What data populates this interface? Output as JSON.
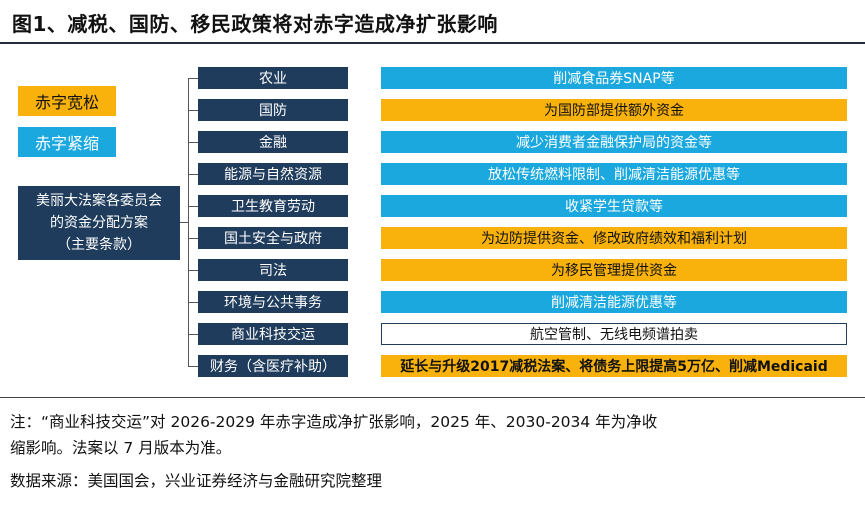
{
  "title": "图1、减税、国防、移民政策将对赤字造成净扩张影响",
  "legend": {
    "loose": {
      "label": "赤字宽松",
      "color": "#f9b20b"
    },
    "tight": {
      "label": "赤字紧缩",
      "color": "#1aa8de"
    }
  },
  "root": {
    "line1": "美丽大法案各委员会",
    "line2": "的资金分配方案",
    "line3": "（主要条款）"
  },
  "rows": [
    {
      "category": "农业",
      "impact": "削减食品券SNAP等",
      "effect": "tight"
    },
    {
      "category": "国防",
      "impact": "为国防部提供额外资金",
      "effect": "loose"
    },
    {
      "category": "金融",
      "impact": "减少消费者金融保护局的资金等",
      "effect": "tight"
    },
    {
      "category": "能源与自然资源",
      "impact": "放松传统燃料限制、削减清洁能源优惠等",
      "effect": "tight"
    },
    {
      "category": "卫生教育劳动",
      "impact": "收紧学生贷款等",
      "effect": "tight"
    },
    {
      "category": "国土安全与政府",
      "impact": "为边防提供资金、修改政府绩效和福利计划",
      "effect": "loose"
    },
    {
      "category": "司法",
      "impact": "为移民管理提供资金",
      "effect": "loose"
    },
    {
      "category": "环境与公共事务",
      "impact": "削减清洁能源优惠等",
      "effect": "tight"
    },
    {
      "category": "商业科技交运",
      "impact": "航空管制、无线电频谱拍卖",
      "effect": "neutral"
    },
    {
      "category": "财务（含医疗补助）",
      "impact": "延长与升级2017减税法案、将债务上限提高5万亿、削减Medicaid",
      "effect": "loose"
    }
  ],
  "notes": {
    "line1": "注：“商业科技交运”对 2026-2029 年赤字造成净扩张影响，2025 年、2030-2034 年为净收",
    "line2": "缩影响。法案以 7 月版本为准。",
    "source": "数据来源：美国国会，兴业证券经济与金融研究院整理"
  }
}
